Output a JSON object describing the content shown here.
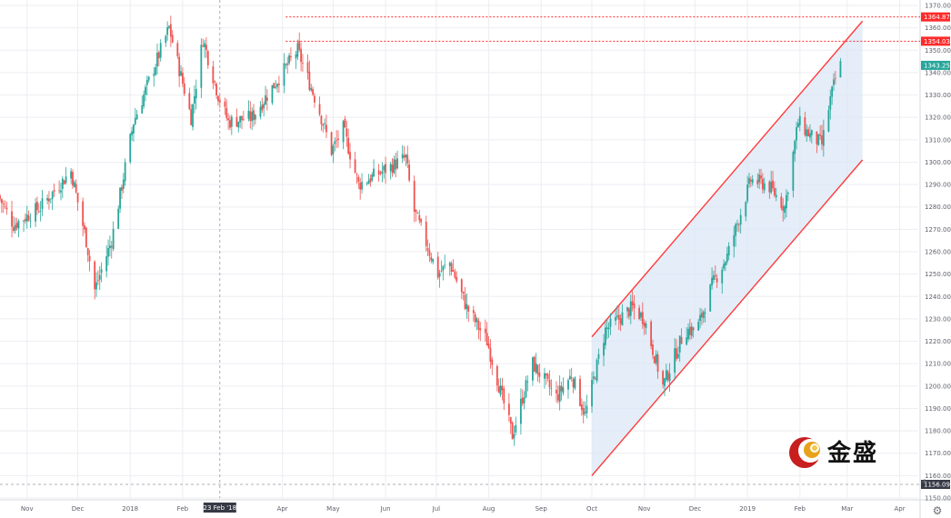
{
  "chart_data": {
    "type": "candlestick",
    "y_axis": {
      "range": [
        1150,
        1372
      ],
      "ticks": [
        1150,
        1160,
        1170,
        1180,
        1190,
        1200,
        1210,
        1220,
        1230,
        1240,
        1250,
        1260,
        1270,
        1280,
        1290,
        1300,
        1310,
        1320,
        1330,
        1340,
        1350,
        1360,
        1370
      ],
      "tick_labels": [
        "1150.00",
        "1160.00",
        "1170.00",
        "1180.00",
        "1190.00",
        "1200.00",
        "1210.00",
        "1220.00",
        "1230.00",
        "1240.00",
        "1250.00",
        "1260.00",
        "1270.00",
        "1280.00",
        "1290.00",
        "1300.00",
        "1310.00",
        "1320.00",
        "1330.00",
        "1340.00",
        "1350.00",
        "1360.00",
        "1370.00"
      ],
      "position": "right"
    },
    "x_axis": {
      "start": "2017-10-16",
      "end": "2019-04-12",
      "tick_labels": [
        {
          "label": "Nov",
          "date": "2017-11-01"
        },
        {
          "label": "Dec",
          "date": "2017-12-01"
        },
        {
          "label": "2018",
          "date": "2018-01-01"
        },
        {
          "label": "Feb",
          "date": "2018-02-01"
        },
        {
          "label": "23 Feb '18",
          "date": "2018-02-23",
          "highlight": true
        },
        {
          "label": "Apr",
          "date": "2018-04-01"
        },
        {
          "label": "May",
          "date": "2018-05-01"
        },
        {
          "label": "Jun",
          "date": "2018-06-01"
        },
        {
          "label": "Jul",
          "date": "2018-07-01"
        },
        {
          "label": "Aug",
          "date": "2018-08-01"
        },
        {
          "label": "Sep",
          "date": "2018-09-01"
        },
        {
          "label": "Oct",
          "date": "2018-10-01"
        },
        {
          "label": "Nov",
          "date": "2018-11-01"
        },
        {
          "label": "Dec",
          "date": "2018-12-01"
        },
        {
          "label": "2019",
          "date": "2019-01-01"
        },
        {
          "label": "Feb",
          "date": "2019-02-01"
        },
        {
          "label": "Mar",
          "date": "2019-03-01"
        },
        {
          "label": "Apr",
          "date": "2019-04-01"
        }
      ]
    },
    "crosshair": {
      "date": "2018-02-23",
      "price": 1156.09,
      "label": "1156.09"
    },
    "price_path_anchors": [
      {
        "date": "2017-10-16",
        "price": 1285
      },
      {
        "date": "2017-10-25",
        "price": 1272
      },
      {
        "date": "2017-11-10",
        "price": 1280
      },
      {
        "date": "2017-11-28",
        "price": 1296
      },
      {
        "date": "2017-12-07",
        "price": 1265
      },
      {
        "date": "2017-12-12",
        "price": 1243
      },
      {
        "date": "2017-12-22",
        "price": 1265
      },
      {
        "date": "2018-01-04",
        "price": 1318
      },
      {
        "date": "2018-01-25",
        "price": 1360
      },
      {
        "date": "2018-02-07",
        "price": 1320
      },
      {
        "date": "2018-02-14",
        "price": 1355
      },
      {
        "date": "2018-02-23",
        "price": 1330
      },
      {
        "date": "2018-03-01",
        "price": 1318
      },
      {
        "date": "2018-03-15",
        "price": 1320
      },
      {
        "date": "2018-04-02",
        "price": 1340
      },
      {
        "date": "2018-04-11",
        "price": 1350
      },
      {
        "date": "2018-04-23",
        "price": 1325
      },
      {
        "date": "2018-05-01",
        "price": 1305
      },
      {
        "date": "2018-05-08",
        "price": 1315
      },
      {
        "date": "2018-05-17",
        "price": 1290
      },
      {
        "date": "2018-06-05",
        "price": 1298
      },
      {
        "date": "2018-06-14",
        "price": 1302
      },
      {
        "date": "2018-06-18",
        "price": 1280
      },
      {
        "date": "2018-07-03",
        "price": 1250
      },
      {
        "date": "2018-07-10",
        "price": 1255
      },
      {
        "date": "2018-07-20",
        "price": 1235
      },
      {
        "date": "2018-08-01",
        "price": 1220
      },
      {
        "date": "2018-08-16",
        "price": 1178
      },
      {
        "date": "2018-08-22",
        "price": 1195
      },
      {
        "date": "2018-08-28",
        "price": 1210
      },
      {
        "date": "2018-09-11",
        "price": 1195
      },
      {
        "date": "2018-09-20",
        "price": 1205
      },
      {
        "date": "2018-09-28",
        "price": 1187
      },
      {
        "date": "2018-10-10",
        "price": 1225
      },
      {
        "date": "2018-10-26",
        "price": 1235
      },
      {
        "date": "2018-11-02",
        "price": 1230
      },
      {
        "date": "2018-11-13",
        "price": 1200
      },
      {
        "date": "2018-11-26",
        "price": 1225
      },
      {
        "date": "2018-12-03",
        "price": 1225
      },
      {
        "date": "2018-12-12",
        "price": 1245
      },
      {
        "date": "2018-12-21",
        "price": 1258
      },
      {
        "date": "2019-01-04",
        "price": 1292
      },
      {
        "date": "2019-01-14",
        "price": 1290
      },
      {
        "date": "2019-01-24",
        "price": 1280
      },
      {
        "date": "2019-02-01",
        "price": 1318
      },
      {
        "date": "2019-02-08",
        "price": 1312
      },
      {
        "date": "2019-02-15",
        "price": 1308
      },
      {
        "date": "2019-02-20",
        "price": 1328
      },
      {
        "date": "2019-02-25",
        "price": 1343.25
      }
    ],
    "levels": [
      {
        "price": 1364.87,
        "label": "1364.87",
        "color": "#ff2a2a",
        "start_date": "2018-04-03"
      },
      {
        "price": 1354.03,
        "label": "1354.03",
        "color": "#ff2a2a",
        "start_date": "2018-04-03"
      }
    ],
    "last_price": {
      "price": 1343.25,
      "label": "1343.25",
      "color": "#26a69a"
    },
    "channel": {
      "color": "#ff3b3b",
      "fill": "#dbe7f6",
      "upper": [
        {
          "date": "2018-10-01",
          "price": 1222
        },
        {
          "date": "2019-03-10",
          "price": 1363
        }
      ],
      "lower": [
        {
          "date": "2018-10-01",
          "price": 1160
        },
        {
          "date": "2019-03-10",
          "price": 1301
        }
      ]
    },
    "colors": {
      "up": "#26a69a",
      "down": "#ef5350",
      "grid": "#eceef2",
      "axis_text": "#5d606b"
    },
    "grid": true,
    "legend": "none"
  },
  "watermark": {
    "text": "金盛"
  },
  "icons": {
    "settings": "gear-icon",
    "crosshair": "crosshair-icon"
  }
}
